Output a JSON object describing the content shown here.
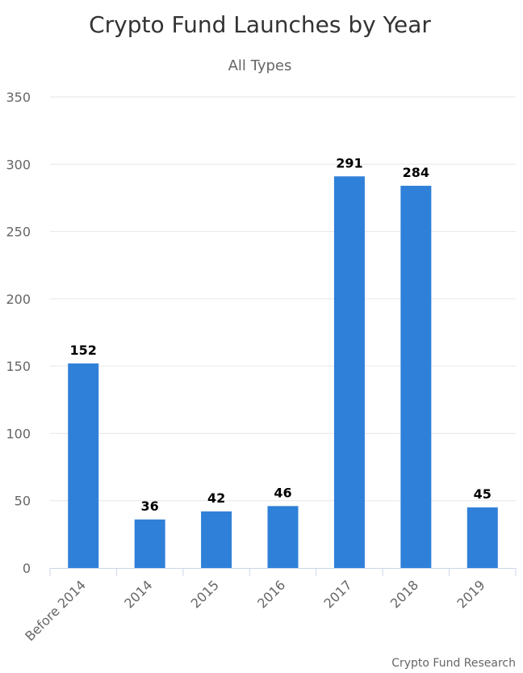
{
  "chart_data": {
    "type": "bar",
    "title": "Crypto Fund Launches by Year",
    "subtitle": "All Types",
    "credit": "Crypto Fund Research",
    "categories": [
      "Before 2014",
      "2014",
      "2015",
      "2016",
      "2017",
      "2018",
      "2019"
    ],
    "values": [
      152,
      36,
      42,
      46,
      291,
      284,
      45
    ],
    "ylim": [
      0,
      350
    ],
    "yticks": [
      0,
      50,
      100,
      150,
      200,
      250,
      300,
      350
    ],
    "xlabel": "",
    "ylabel": "",
    "grid": true,
    "legend": "none",
    "bar_color": "#2f80d8"
  }
}
